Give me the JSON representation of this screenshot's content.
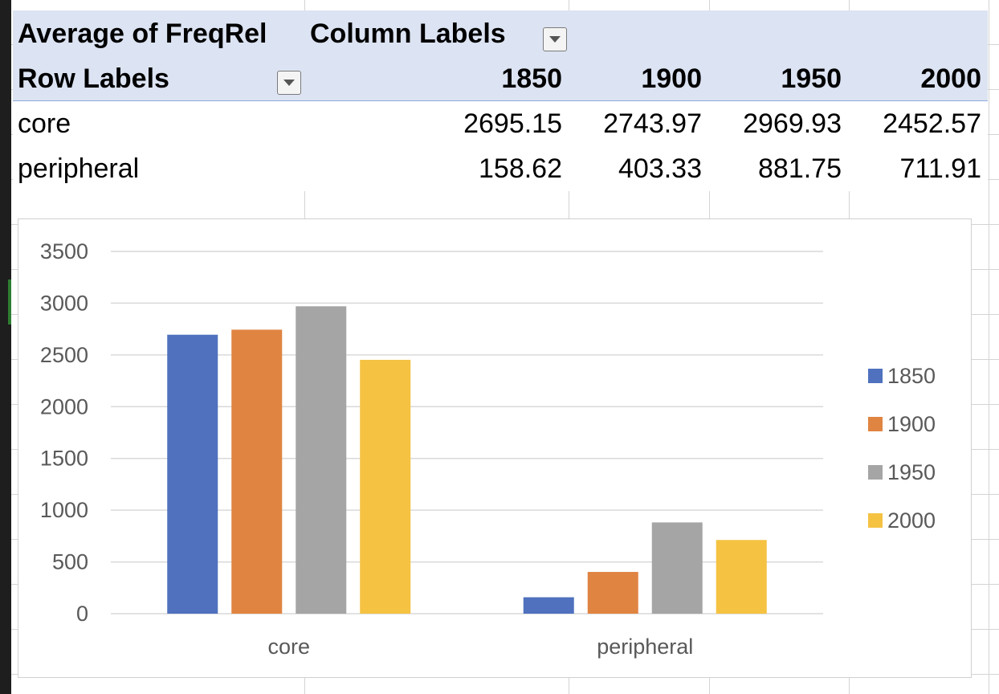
{
  "pivot": {
    "value_field": "Average of FreqRel",
    "column_labels": "Column Labels",
    "row_labels": "Row Labels",
    "columns": [
      "1850",
      "1900",
      "1950",
      "2000"
    ],
    "rows": [
      {
        "label": "core",
        "values": [
          "2695.15",
          "2743.97",
          "2969.93",
          "2452.57"
        ]
      },
      {
        "label": "peripheral",
        "values": [
          "158.62",
          "403.33",
          "881.75",
          "711.91"
        ]
      }
    ]
  },
  "chart_data": {
    "type": "bar",
    "categories": [
      "core",
      "peripheral"
    ],
    "series": [
      {
        "name": "1850",
        "values": [
          2695.15,
          158.62
        ],
        "color": "#4f71be"
      },
      {
        "name": "1900",
        "values": [
          2743.97,
          403.33
        ],
        "color": "#e08442"
      },
      {
        "name": "1950",
        "values": [
          2969.93,
          881.75
        ],
        "color": "#a5a5a5"
      },
      {
        "name": "2000",
        "values": [
          2452.57,
          711.91
        ],
        "color": "#f5c242"
      }
    ],
    "ylim": [
      0,
      3500
    ],
    "yticks": [
      "0",
      "500",
      "1000",
      "1500",
      "2000",
      "2500",
      "3000",
      "3500"
    ],
    "grid": true,
    "legend": "right"
  }
}
